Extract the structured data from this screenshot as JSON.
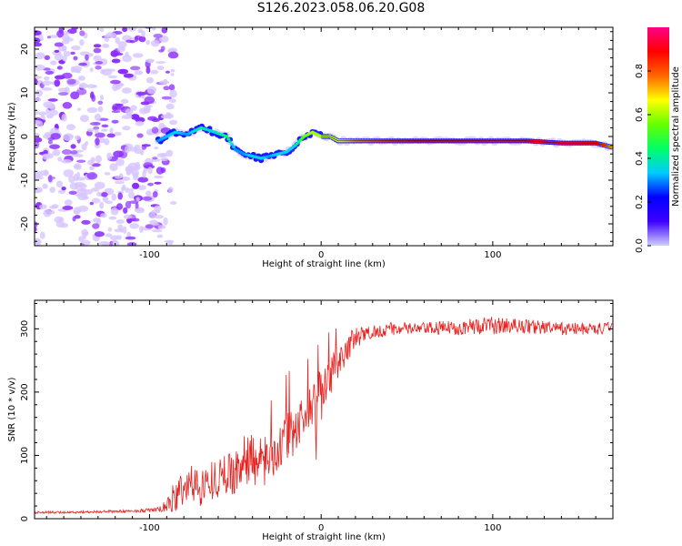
{
  "title": "S126.2023.058.06.20.G08",
  "colors": {
    "line": "#e8201e",
    "ridge_low": "#1a1aff",
    "ridge_high": "#ff1a1a",
    "noise": "#8f3dff"
  },
  "chart_data": [
    {
      "type": "heatmap",
      "xlabel": "Height of straight line (km)",
      "ylabel": "Frequency (Hz)",
      "xlim": [
        -167,
        170
      ],
      "ylim": [
        -25,
        25
      ],
      "xticks": [
        -100,
        0,
        100
      ],
      "yticks": [
        -20,
        -10,
        0,
        10,
        20
      ],
      "colorbar": {
        "label": "Normalized spectral amplitude",
        "range": [
          0,
          1
        ],
        "ticks": [
          "0.0",
          "0.2",
          "0.4",
          "0.6",
          "0.8"
        ],
        "colors": [
          "#d0d0ff",
          "#3d00ff",
          "#0000ff",
          "#00ccff",
          "#00ff66",
          "#66ff00",
          "#ffff00",
          "#ff6600",
          "#ff0000",
          "#ff0088"
        ]
      },
      "noise_region": {
        "x_range": [
          -167,
          -90
        ],
        "freq_range": [
          -25,
          25
        ]
      },
      "ridge": {
        "x": [
          -95,
          -85,
          -78,
          -70,
          -62,
          -55,
          -50,
          -45,
          -40,
          -35,
          -30,
          -25,
          -20,
          -15,
          -10,
          -5,
          0,
          5,
          10,
          20,
          40,
          60,
          80,
          100,
          120,
          140,
          160,
          170
        ],
        "frequency": [
          -1,
          1,
          0.5,
          2,
          1,
          0,
          -3,
          -4,
          -4.5,
          -5,
          -4.5,
          -4,
          -3.5,
          -2,
          0,
          1,
          0,
          0,
          -1,
          -1,
          -1,
          -1,
          -1,
          -1,
          -1,
          -1.5,
          -1.5,
          -2.5
        ],
        "amplitude": [
          0.3,
          0.35,
          0.3,
          0.4,
          0.35,
          0.45,
          0.3,
          0.3,
          0.35,
          0.35,
          0.3,
          0.35,
          0.35,
          0.35,
          0.55,
          0.6,
          0.6,
          0.6,
          0.65,
          0.75,
          0.85,
          0.9,
          0.9,
          0.95,
          0.9,
          0.95,
          0.9,
          0.7
        ]
      }
    },
    {
      "type": "line",
      "xlabel": "Height of straight line (km)",
      "ylabel": "SNR (10 * v/v)",
      "xlim": [
        -167,
        170
      ],
      "ylim": [
        0,
        345
      ],
      "xticks": [
        -100,
        0,
        100
      ],
      "yticks": [
        0,
        100,
        200,
        300
      ],
      "series": [
        {
          "x": [
            -167,
            -150,
            -130,
            -110,
            -95,
            -90,
            -85,
            -80,
            -75,
            -70,
            -65,
            -60,
            -55,
            -50,
            -45,
            -40,
            -35,
            -30,
            -25,
            -20,
            -15,
            -10,
            -5,
            -2,
            0,
            5,
            10,
            15,
            20,
            25,
            30,
            40,
            60,
            80,
            95,
            100,
            110,
            120,
            140,
            160,
            170
          ],
          "y": [
            10,
            10,
            11,
            12,
            14,
            20,
            35,
            50,
            55,
            50,
            60,
            65,
            70,
            75,
            90,
            100,
            85,
            100,
            110,
            125,
            140,
            160,
            175,
            200,
            190,
            220,
            245,
            270,
            285,
            290,
            295,
            300,
            300,
            302,
            305,
            305,
            305,
            304,
            300,
            300,
            300
          ],
          "noise": [
            2,
            2,
            2,
            2,
            4,
            10,
            28,
            30,
            32,
            30,
            30,
            32,
            34,
            35,
            40,
            45,
            40,
            40,
            40,
            40,
            40,
            40,
            40,
            40,
            40,
            40,
            30,
            24,
            18,
            14,
            12,
            10,
            10,
            12,
            14,
            14,
            12,
            12,
            10,
            10,
            10
          ]
        }
      ]
    }
  ]
}
